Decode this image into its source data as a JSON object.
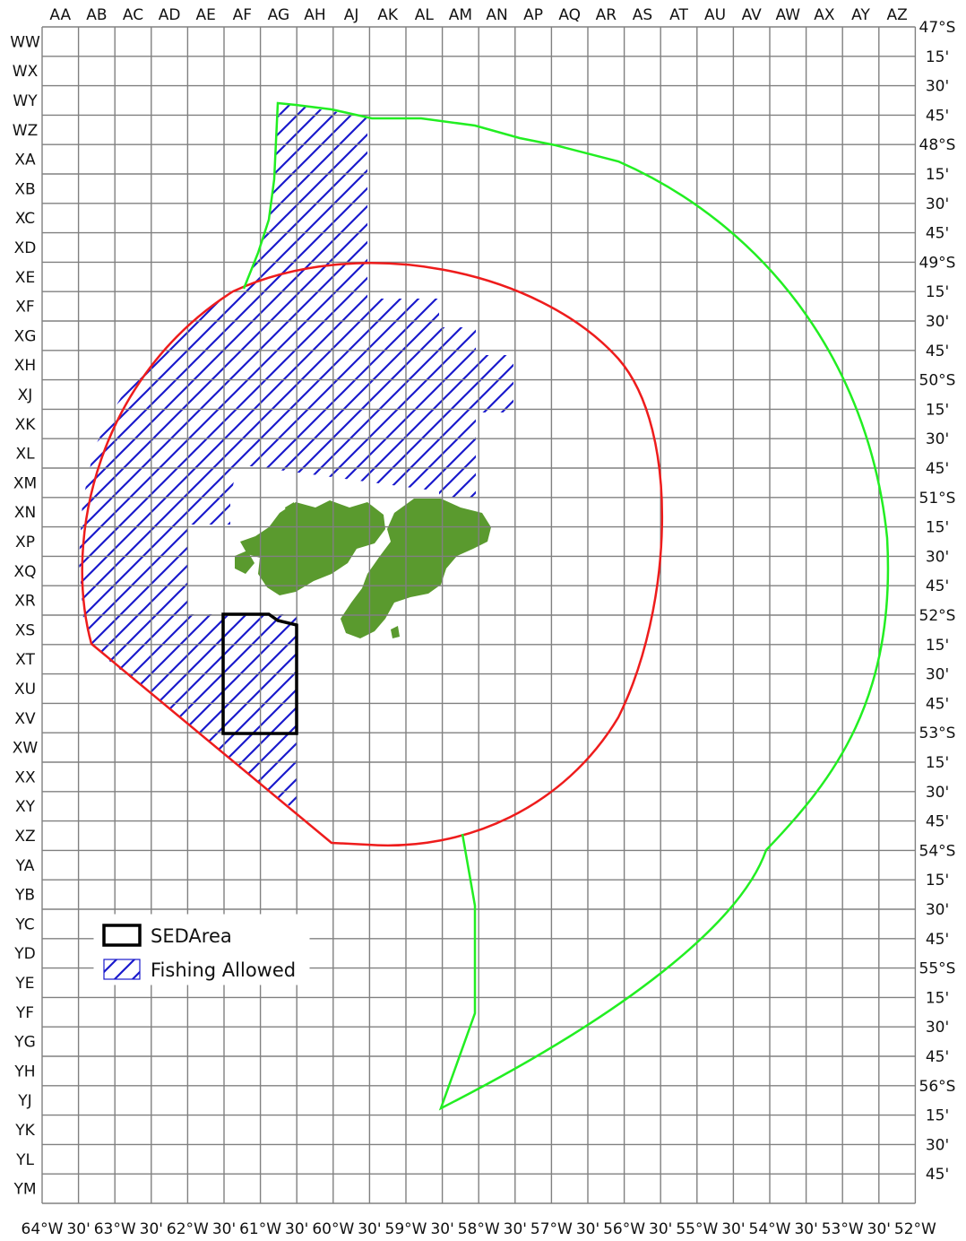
{
  "columns": [
    "AA",
    "AB",
    "AC",
    "AD",
    "AE",
    "AF",
    "AG",
    "AH",
    "AJ",
    "AK",
    "AL",
    "AM",
    "AN",
    "AP",
    "AQ",
    "AR",
    "AS",
    "AT",
    "AU",
    "AV",
    "AW",
    "AX",
    "AY",
    "AZ"
  ],
  "rows": [
    "WW",
    "WX",
    "WY",
    "WZ",
    "XA",
    "XB",
    "XC",
    "XD",
    "XE",
    "XF",
    "XG",
    "XH",
    "XJ",
    "XK",
    "XL",
    "XM",
    "XN",
    "XP",
    "XQ",
    "XR",
    "XS",
    "XT",
    "XU",
    "XV",
    "XW",
    "XX",
    "XY",
    "XZ",
    "YA",
    "YB",
    "YC",
    "YD",
    "YE",
    "YF",
    "YG",
    "YH",
    "YJ",
    "YK",
    "YL",
    "YM"
  ],
  "latitude_labels": [
    "47°S",
    "15'",
    "30'",
    "45'",
    "48°S",
    "15'",
    "30'",
    "45'",
    "49°S",
    "15'",
    "30'",
    "45'",
    "50°S",
    "15'",
    "30'",
    "45'",
    "51°S",
    "15'",
    "30'",
    "45'",
    "52°S",
    "15'",
    "30'",
    "45'",
    "53°S",
    "15'",
    "30'",
    "45'",
    "54°S",
    "15'",
    "30'",
    "45'",
    "55°S",
    "15'",
    "30'",
    "45'",
    "56°S",
    "15'",
    "30'",
    "45'"
  ],
  "longitude_labels": [
    "64°W",
    "30'",
    "63°W",
    "30'",
    "62°W",
    "30'",
    "61°W",
    "30'",
    "60°W",
    "30'",
    "59°W",
    "30'",
    "58°W",
    "30'",
    "57°W",
    "30'",
    "56°W",
    "30'",
    "55°W",
    "30'",
    "54°W",
    "30'",
    "53°W",
    "30'",
    "52°W"
  ],
  "legend": {
    "sed_area_label": "SEDArea",
    "fishing_allowed_label": "Fishing Allowed"
  },
  "colors": {
    "grid": "#808080",
    "fishing_hatch": "#1a1acc",
    "circle_boundary": "#ee1c1c",
    "outer_boundary": "#22ee22",
    "sed_area": "#000000",
    "land": "#5a9a2e"
  }
}
